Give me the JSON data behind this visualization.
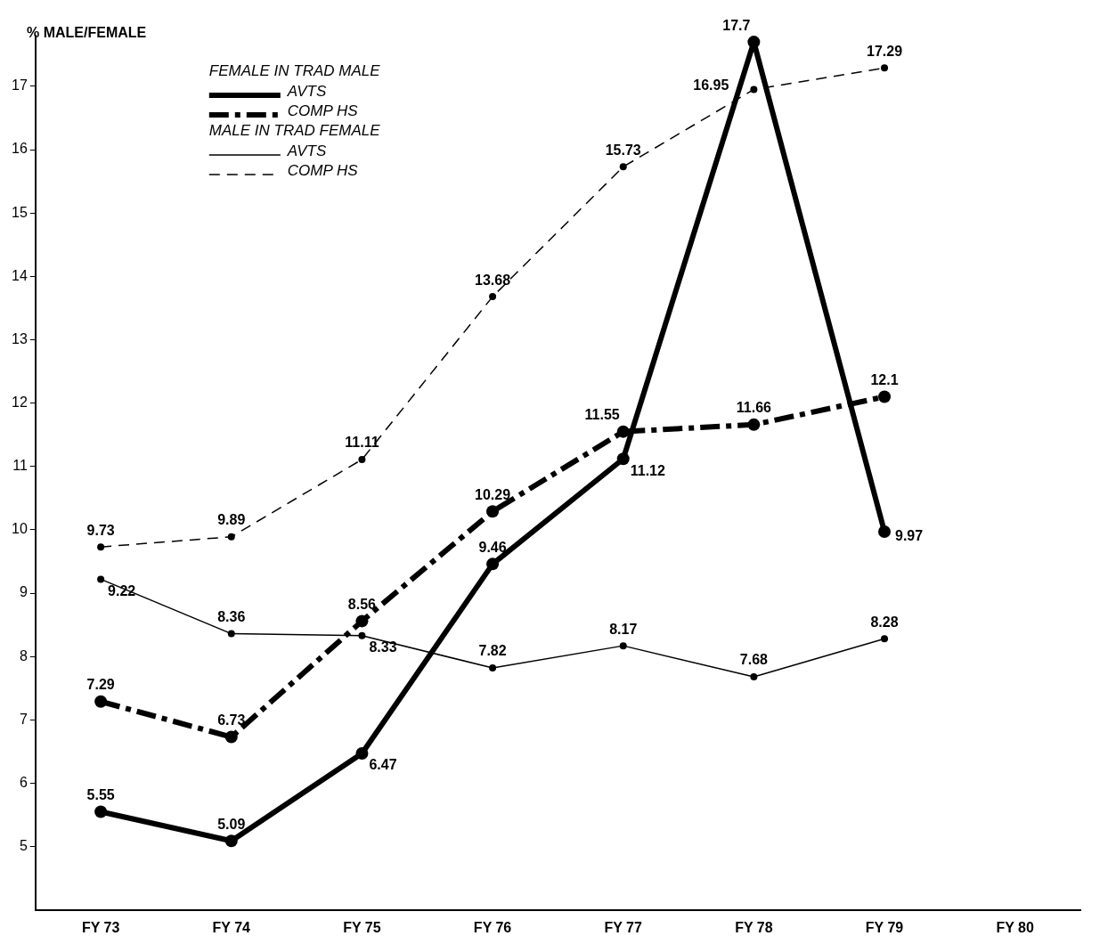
{
  "chart_data": {
    "type": "line",
    "ylabel": "% MALE/FEMALE",
    "categories": [
      "FY 73",
      "FY 74",
      "FY 75",
      "FY 76",
      "FY 77",
      "FY 78",
      "FY 79",
      "FY 80"
    ],
    "annotations": [
      "FEMALE IN TRAD MALE",
      "MALE IN TRAD FEMALE"
    ],
    "series": [
      {
        "name": "AVTS",
        "color": "#000000",
        "line_style": "solid",
        "values": [
          5.55,
          5.09,
          6.47,
          9.46,
          11.12,
          17.7,
          9.97,
          null
        ]
      },
      {
        "name": "COMP HS",
        "color": "#000000",
        "line_style": "dashed",
        "values": [
          7.29,
          6.73,
          8.56,
          10.29,
          11.55,
          11.66,
          12.1,
          null
        ]
      },
      {
        "name": "AVTS",
        "color": "#000000",
        "line_style": "solid",
        "values": [
          9.22,
          8.36,
          8.33,
          7.82,
          8.17,
          7.68,
          8.28,
          null
        ]
      },
      {
        "name": "COMP HS",
        "color": "#000000",
        "line_style": "dashed",
        "values": [
          9.73,
          9.89,
          11.11,
          13.68,
          15.73,
          16.95,
          17.29,
          null
        ]
      }
    ],
    "ylim": [
      4,
      17.8
    ],
    "yticks": [
      5,
      6,
      7,
      8,
      9,
      10,
      11,
      12,
      13,
      14,
      15,
      16,
      17
    ],
    "grid": false,
    "legend": "top left",
    "marker": "circle",
    "data_labels": true
  }
}
